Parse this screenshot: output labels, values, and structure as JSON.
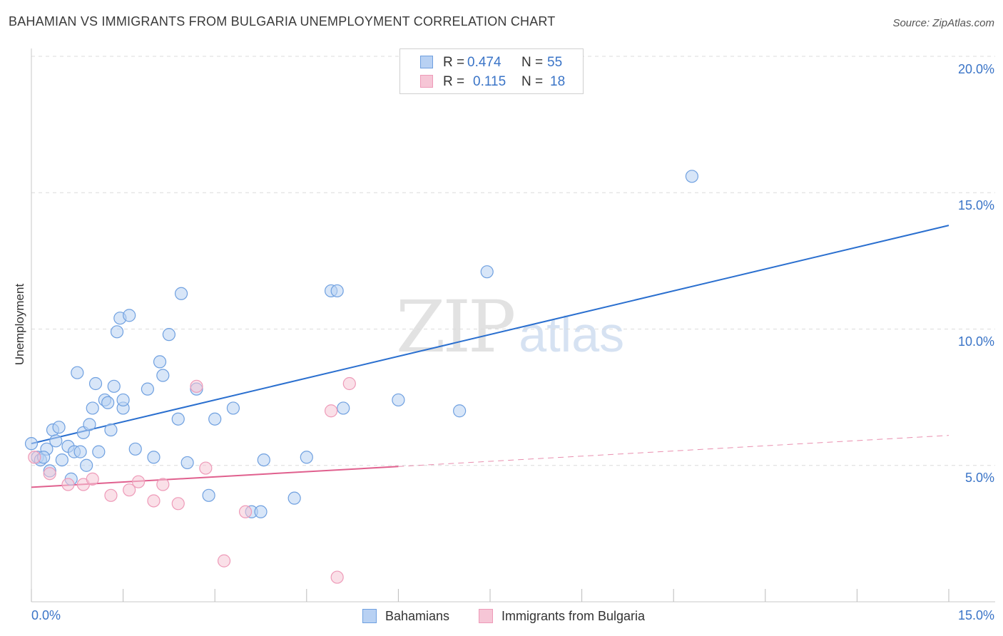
{
  "chart_data": {
    "type": "scatter",
    "title": "BAHAMIAN VS IMMIGRANTS FROM BULGARIA UNEMPLOYMENT CORRELATION CHART",
    "source": "Source: ZipAtlas.com",
    "ylabel": "Unemployment",
    "xlabel": "",
    "xlim": [
      0,
      15
    ],
    "ylim": [
      0,
      20
    ],
    "x_ticks": [
      "0.0%",
      "15.0%"
    ],
    "y_ticks": [
      {
        "value": 5,
        "label": "5.0%"
      },
      {
        "value": 10,
        "label": "10.0%"
      },
      {
        "value": 15,
        "label": "15.0%"
      },
      {
        "value": 20,
        "label": "20.0%"
      }
    ],
    "grid": true,
    "watermark": {
      "zip": "ZIP",
      "atlas": "atlas"
    },
    "series": [
      {
        "name": "Bahamians",
        "color": "#6fa0e0",
        "fill": "#b8d1f3",
        "line_color": "#2a6fcf",
        "R": "0.474",
        "N": "55",
        "trend": {
          "x": [
            0,
            15
          ],
          "y": [
            5.8,
            13.8
          ],
          "dashed_from": null
        },
        "points": [
          [
            0.0,
            5.8
          ],
          [
            0.1,
            5.3
          ],
          [
            0.15,
            5.2
          ],
          [
            0.25,
            5.6
          ],
          [
            0.3,
            4.8
          ],
          [
            0.35,
            6.3
          ],
          [
            0.4,
            5.9
          ],
          [
            0.45,
            6.4
          ],
          [
            0.5,
            5.2
          ],
          [
            0.6,
            5.7
          ],
          [
            0.65,
            4.5
          ],
          [
            0.7,
            5.5
          ],
          [
            0.75,
            8.4
          ],
          [
            0.8,
            5.5
          ],
          [
            0.85,
            6.2
          ],
          [
            0.9,
            5.0
          ],
          [
            0.95,
            6.5
          ],
          [
            1.0,
            7.1
          ],
          [
            1.05,
            8.0
          ],
          [
            1.1,
            5.5
          ],
          [
            1.2,
            7.4
          ],
          [
            1.25,
            7.3
          ],
          [
            1.3,
            6.3
          ],
          [
            1.35,
            7.9
          ],
          [
            1.4,
            9.9
          ],
          [
            1.45,
            10.4
          ],
          [
            1.5,
            7.1
          ],
          [
            1.5,
            7.4
          ],
          [
            1.6,
            10.5
          ],
          [
            1.7,
            5.6
          ],
          [
            1.9,
            7.8
          ],
          [
            2.0,
            5.3
          ],
          [
            2.1,
            8.8
          ],
          [
            2.15,
            8.3
          ],
          [
            2.25,
            9.8
          ],
          [
            2.4,
            6.7
          ],
          [
            2.45,
            11.3
          ],
          [
            2.55,
            5.1
          ],
          [
            2.7,
            7.8
          ],
          [
            2.9,
            3.9
          ],
          [
            3.0,
            6.7
          ],
          [
            3.3,
            7.1
          ],
          [
            3.6,
            3.3
          ],
          [
            3.75,
            3.3
          ],
          [
            3.8,
            5.2
          ],
          [
            4.3,
            3.8
          ],
          [
            4.5,
            5.3
          ],
          [
            4.9,
            11.4
          ],
          [
            5.0,
            11.4
          ],
          [
            5.1,
            7.1
          ],
          [
            6.0,
            7.4
          ],
          [
            7.0,
            7.0
          ],
          [
            7.45,
            12.1
          ],
          [
            10.8,
            15.6
          ],
          [
            0.2,
            5.3
          ]
        ]
      },
      {
        "name": "Immigrants from Bulgaria",
        "color": "#ee9ab8",
        "fill": "#f6c6d6",
        "line_color": "#e0608e",
        "R": "0.115",
        "N": "18",
        "trend": {
          "x": [
            0,
            15
          ],
          "y": [
            4.2,
            6.1
          ],
          "dashed_from": 6.0
        },
        "points": [
          [
            0.05,
            5.3
          ],
          [
            0.3,
            4.7
          ],
          [
            0.6,
            4.3
          ],
          [
            0.85,
            4.3
          ],
          [
            1.0,
            4.5
          ],
          [
            1.3,
            3.9
          ],
          [
            1.6,
            4.1
          ],
          [
            1.75,
            4.4
          ],
          [
            2.0,
            3.7
          ],
          [
            2.15,
            4.3
          ],
          [
            2.4,
            3.6
          ],
          [
            2.7,
            7.9
          ],
          [
            2.85,
            4.9
          ],
          [
            3.15,
            1.5
          ],
          [
            3.5,
            3.3
          ],
          [
            4.9,
            7.0
          ],
          [
            5.2,
            8.0
          ],
          [
            5.0,
            0.9
          ]
        ]
      }
    ]
  }
}
